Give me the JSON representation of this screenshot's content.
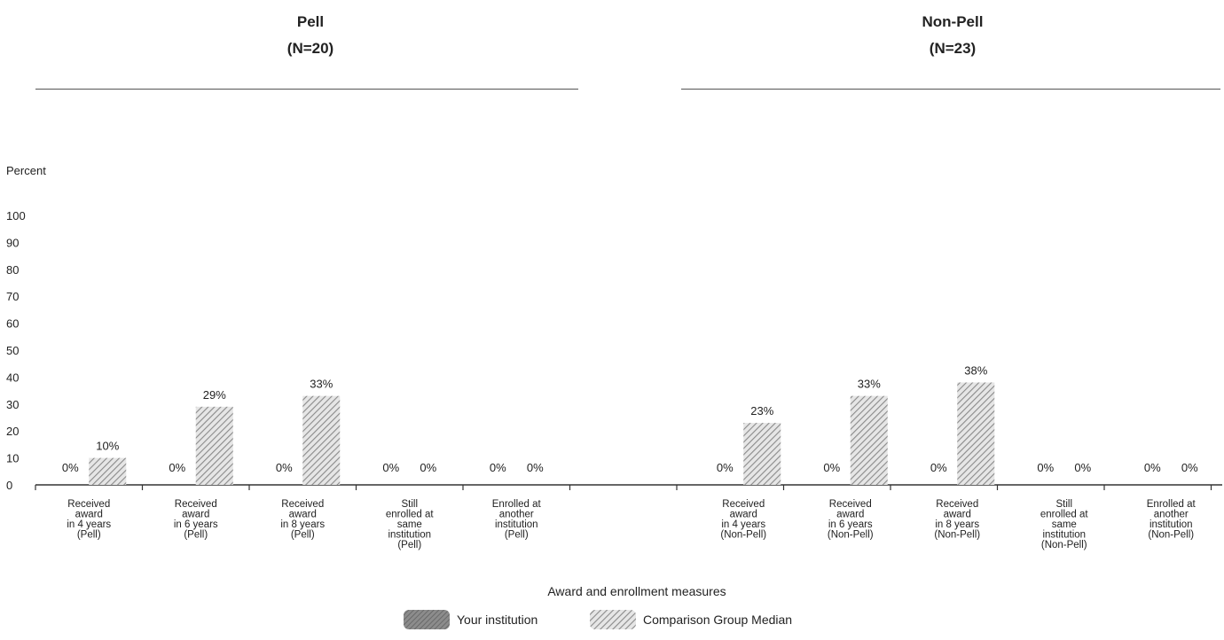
{
  "chart_data": {
    "type": "bar",
    "ylabel": "Percent",
    "xlabel": "Award and enrollment measures",
    "ylim": [
      0,
      100
    ],
    "yticks": [
      0,
      10,
      20,
      30,
      40,
      50,
      60,
      70,
      80,
      90,
      100
    ],
    "legend": {
      "placement": "bottom-center",
      "items": [
        "Your institution",
        "Comparison Group Median"
      ]
    },
    "groups": [
      {
        "title": "Pell",
        "subtitle": "(N=20)",
        "categories": [
          [
            "Received",
            "award",
            "in 4 years",
            "(Pell)"
          ],
          [
            "Received",
            "award",
            "in 6 years",
            "(Pell)"
          ],
          [
            "Received",
            "award",
            "in 8 years",
            "(Pell)"
          ],
          [
            "Still",
            "enrolled at",
            "same",
            "institution",
            "(Pell)"
          ],
          [
            "Enrolled at",
            "another",
            "institution",
            "(Pell)"
          ]
        ],
        "series": [
          {
            "name": "Your institution",
            "values": [
              0,
              0,
              0,
              0,
              0
            ],
            "labels": [
              "0%",
              "0%",
              "0%",
              "0%",
              "0%"
            ]
          },
          {
            "name": "Comparison Group Median",
            "values": [
              10,
              29,
              33,
              0,
              0
            ],
            "labels": [
              "10%",
              "29%",
              "33%",
              "0%",
              "0%"
            ]
          }
        ]
      },
      {
        "title": "Non-Pell",
        "subtitle": "(N=23)",
        "categories": [
          [
            "Received",
            "award",
            "in 4 years",
            "(Non-Pell)"
          ],
          [
            "Received",
            "award",
            "in 6 years",
            "(Non-Pell)"
          ],
          [
            "Received",
            "award",
            "in 8 years",
            "(Non-Pell)"
          ],
          [
            "Still",
            "enrolled at",
            "same",
            "institution",
            "(Non-Pell)"
          ],
          [
            "Enrolled at",
            "another",
            "institution",
            "(Non-Pell)"
          ]
        ],
        "series": [
          {
            "name": "Your institution",
            "values": [
              0,
              0,
              0,
              0,
              0
            ],
            "labels": [
              "0%",
              "0%",
              "0%",
              "0%",
              "0%"
            ]
          },
          {
            "name": "Comparison Group Median",
            "values": [
              23,
              33,
              38,
              0,
              0
            ],
            "labels": [
              "23%",
              "33%",
              "38%",
              "0%",
              "0%"
            ]
          }
        ]
      }
    ]
  },
  "colors": {
    "your_institution": "#7a7a7a",
    "comparison_median": "#b8b8b8",
    "axis": "#333333"
  }
}
